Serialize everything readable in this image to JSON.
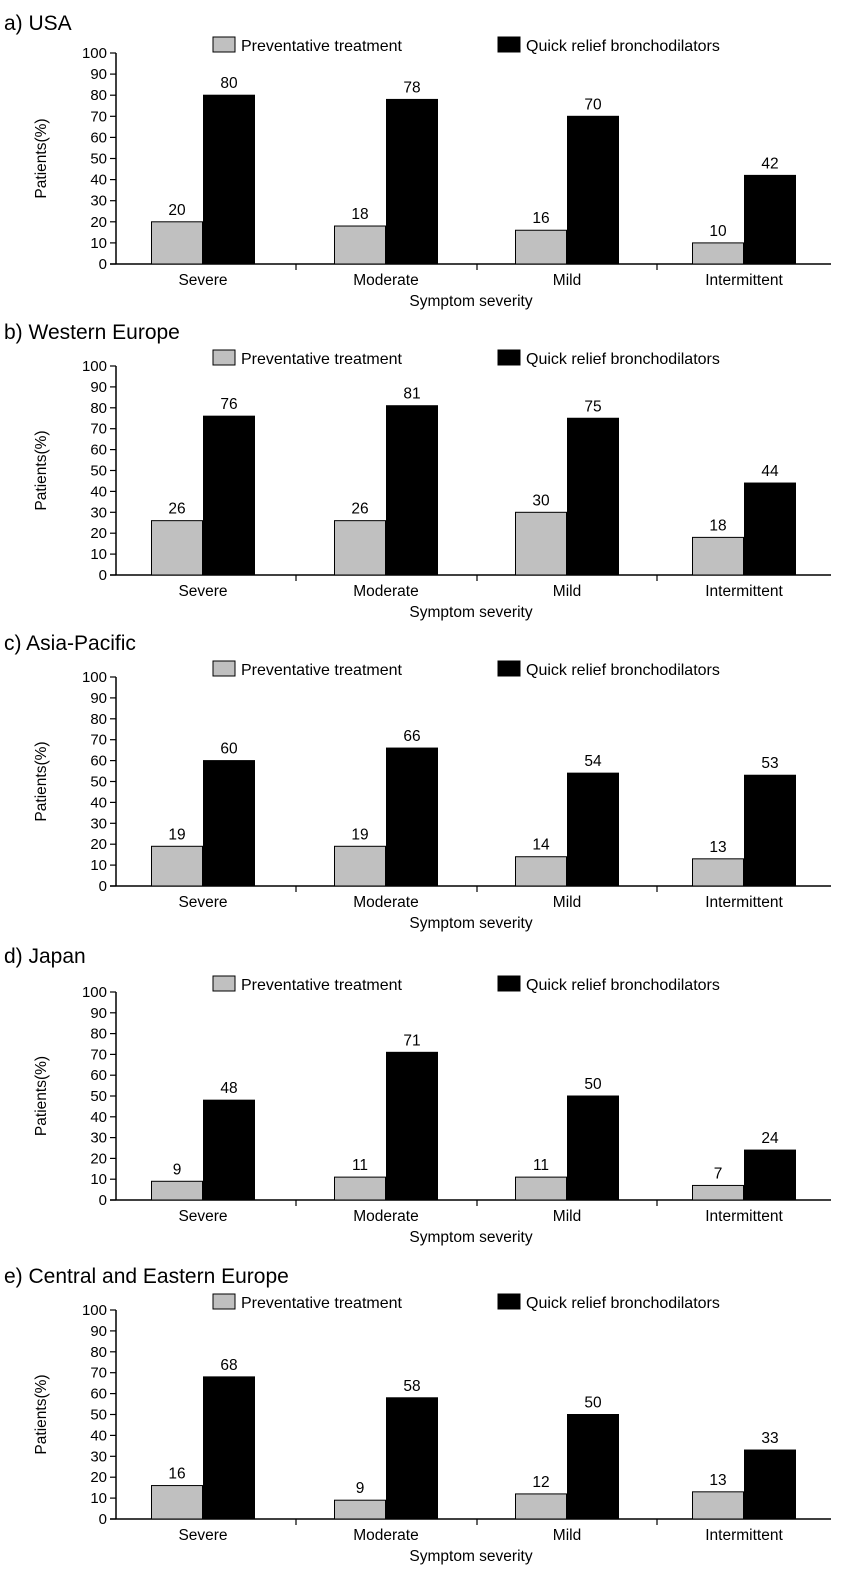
{
  "chart_data": [
    {
      "type": "bar",
      "title": "a) USA",
      "xlabel": "Symptom severity",
      "ylabel": "Patients(%)",
      "ylim": [
        0,
        100
      ],
      "yticks": [
        "0",
        "10",
        "20",
        "30",
        "40",
        "50",
        "60",
        "70",
        "80",
        "90",
        "100"
      ],
      "categories": [
        "Severe",
        "Moderate",
        "Mild",
        "Intermittent"
      ],
      "series": [
        {
          "name": "Preventative treatment",
          "color": "#c0c0c0",
          "values": [
            20,
            18,
            16,
            10
          ]
        },
        {
          "name": "Quick relief bronchodilators",
          "color": "#000000",
          "values": [
            80,
            78,
            70,
            42
          ]
        }
      ],
      "grid": false,
      "legend": "top-right"
    },
    {
      "type": "bar",
      "title": "b) Western Europe",
      "xlabel": "Symptom severity",
      "ylabel": "Patients(%)",
      "ylim": [
        0,
        100
      ],
      "yticks": [
        "0",
        "10",
        "20",
        "30",
        "40",
        "50",
        "60",
        "70",
        "80",
        "90",
        "100"
      ],
      "categories": [
        "Severe",
        "Moderate",
        "Mild",
        "Intermittent"
      ],
      "series": [
        {
          "name": "Preventative treatment",
          "color": "#c0c0c0",
          "values": [
            26,
            26,
            30,
            18
          ]
        },
        {
          "name": "Quick relief bronchodilators",
          "color": "#000000",
          "values": [
            76,
            81,
            75,
            44
          ]
        }
      ],
      "grid": false,
      "legend": "top-right"
    },
    {
      "type": "bar",
      "title": "c) Asia-Pacific",
      "xlabel": "Symptom severity",
      "ylabel": "Patients(%)",
      "ylim": [
        0,
        100
      ],
      "yticks": [
        "0",
        "10",
        "20",
        "30",
        "40",
        "50",
        "60",
        "70",
        "80",
        "90",
        "100"
      ],
      "categories": [
        "Severe",
        "Moderate",
        "Mild",
        "Intermittent"
      ],
      "series": [
        {
          "name": "Preventative treatment",
          "color": "#c0c0c0",
          "values": [
            19,
            19,
            14,
            13
          ]
        },
        {
          "name": "Quick relief bronchodilators",
          "color": "#000000",
          "values": [
            60,
            66,
            54,
            53
          ]
        }
      ],
      "grid": false,
      "legend": "top-right"
    },
    {
      "type": "bar",
      "title": "d) Japan",
      "xlabel": "Symptom severity",
      "ylabel": "Patients(%)",
      "ylim": [
        0,
        100
      ],
      "yticks": [
        "0",
        "10",
        "20",
        "30",
        "40",
        "50",
        "60",
        "70",
        "80",
        "90",
        "100"
      ],
      "categories": [
        "Severe",
        "Moderate",
        "Mild",
        "Intermittent"
      ],
      "series": [
        {
          "name": "Preventative treatment",
          "color": "#c0c0c0",
          "values": [
            9,
            11,
            11,
            7
          ]
        },
        {
          "name": "Quick relief bronchodilators",
          "color": "#000000",
          "values": [
            48,
            71,
            50,
            24
          ]
        }
      ],
      "grid": false,
      "legend": "top-right"
    },
    {
      "type": "bar",
      "title": "e) Central and Eastern Europe",
      "xlabel": "Symptom severity",
      "ylabel": "Patients(%)",
      "ylim": [
        0,
        100
      ],
      "yticks": [
        "0",
        "10",
        "20",
        "30",
        "40",
        "50",
        "60",
        "70",
        "80",
        "90",
        "100"
      ],
      "categories": [
        "Severe",
        "Moderate",
        "Mild",
        "Intermittent"
      ],
      "series": [
        {
          "name": "Preventative treatment",
          "color": "#c0c0c0",
          "values": [
            16,
            9,
            12,
            13
          ]
        },
        {
          "name": "Quick relief bronchodilators",
          "color": "#000000",
          "values": [
            68,
            58,
            50,
            33
          ]
        }
      ],
      "grid": false,
      "legend": "top-right"
    }
  ]
}
